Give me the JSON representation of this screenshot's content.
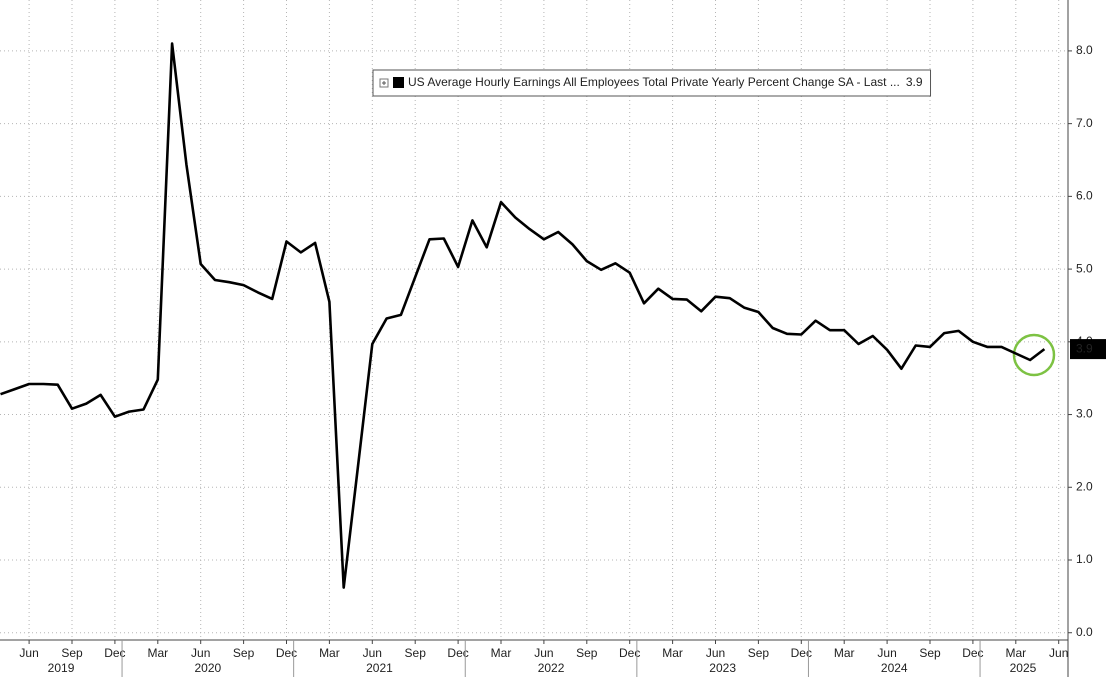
{
  "chart_data": {
    "type": "line",
    "categories": [
      null,
      null,
      "Jun",
      null,
      null,
      "Sep",
      null,
      null,
      "Dec",
      null,
      null,
      "Mar",
      null,
      null,
      "Jun",
      null,
      null,
      "Sep",
      null,
      null,
      "Dec",
      null,
      null,
      "Mar",
      null,
      null,
      "Jun",
      null,
      null,
      "Sep",
      null,
      null,
      "Dec",
      null,
      null,
      "Mar",
      null,
      null,
      "Jun",
      null,
      null,
      "Sep",
      null,
      null,
      "Dec",
      null,
      null,
      "Mar",
      null,
      null,
      "Jun",
      null,
      null,
      "Sep",
      null,
      null,
      "Dec",
      null,
      null,
      "Mar",
      null,
      null,
      "Jun",
      null,
      null,
      "Sep",
      null,
      null,
      "Dec",
      null,
      null,
      "Mar",
      null,
      null,
      "Jun"
    ],
    "years": [
      "2019",
      "2020",
      "2021",
      "2022",
      "2023",
      "2024",
      "2025"
    ],
    "series": [
      {
        "name": "US Average Hourly Earnings All Employees Total Private Yearly Percent Change SA - Last ...",
        "color": "#000000",
        "values": [
          3.28,
          3.35,
          3.42,
          3.42,
          3.41,
          3.08,
          3.15,
          3.27,
          2.97,
          3.04,
          3.07,
          3.48,
          8.1,
          6.44,
          5.07,
          4.85,
          4.82,
          4.78,
          4.68,
          4.59,
          5.38,
          5.23,
          5.36,
          4.55,
          0.62,
          2.29,
          3.97,
          4.32,
          4.37,
          4.89,
          5.41,
          5.42,
          5.03,
          5.67,
          5.3,
          5.92,
          5.71,
          5.55,
          5.41,
          5.51,
          5.34,
          5.11,
          4.99,
          5.08,
          4.95,
          4.53,
          4.73,
          4.59,
          4.58,
          4.42,
          4.62,
          4.6,
          4.47,
          4.41,
          4.19,
          4.11,
          4.1,
          4.29,
          4.16,
          4.16,
          3.97,
          4.08,
          3.89,
          3.63,
          3.95,
          3.93,
          4.12,
          4.15,
          4.0,
          3.93,
          3.93,
          3.84,
          3.75,
          3.9,
          null
        ]
      }
    ],
    "ylim": [
      -0.1,
      8.7
    ],
    "yticks": [
      {
        "value": 0,
        "label": "0.0"
      },
      {
        "value": 1,
        "label": "1.0"
      },
      {
        "value": 2,
        "label": "2.0"
      },
      {
        "value": 3,
        "label": "3.0"
      },
      {
        "value": 4,
        "label": "4.0"
      },
      {
        "value": 5,
        "label": "5.0"
      },
      {
        "value": 6,
        "label": "6.0"
      },
      {
        "value": 7,
        "label": "7.0"
      },
      {
        "value": 8,
        "label": "8.0"
      }
    ],
    "grid": true
  }
}
